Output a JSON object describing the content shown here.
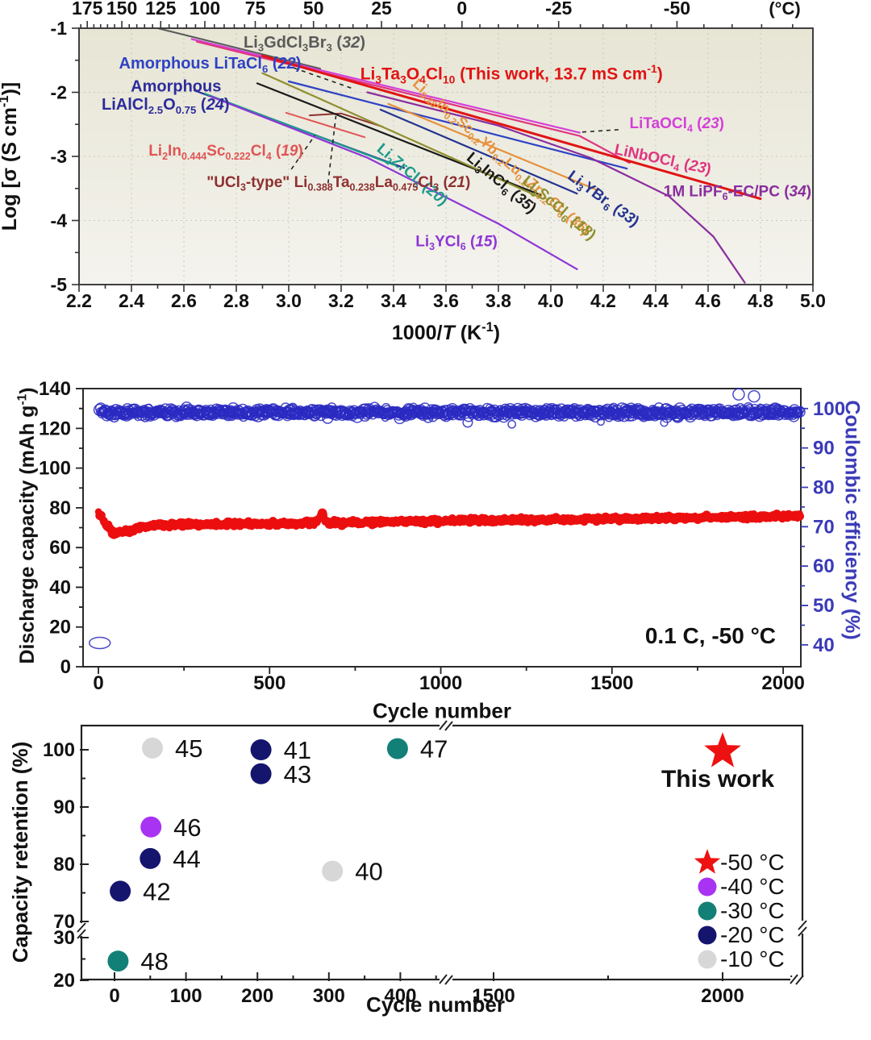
{
  "chart_data": [
    {
      "type": "line",
      "name": "arrhenius-conductivity",
      "plot_bg": [
        "#e7e5d4",
        "#f4f3ee"
      ],
      "x_axis": {
        "label": "1000/*T* (K^-1^)",
        "min": 2.2,
        "max": 5.0,
        "major_step": 0.2,
        "minor_step": 0.1
      },
      "y_axis": {
        "label": "Log [σ (S cm^-1^)]",
        "min": -5,
        "max": -1,
        "major_step": 1,
        "minor_step": 0.5
      },
      "top_axis": {
        "unit": "(°C)",
        "ticks": [
          175,
          150,
          125,
          100,
          75,
          50,
          25,
          0,
          -25,
          -50
        ],
        "minor_step_c": 5
      },
      "grid": {
        "x_values": [
          2.4,
          2.6,
          2.8,
          3.0,
          3.2,
          3.4,
          3.6,
          3.8,
          4.0,
          4.2,
          4.4,
          4.6,
          4.8
        ],
        "y_values": [
          -2,
          -3,
          -4
        ]
      },
      "series": [
        {
          "id": "li3gdcl3br3",
          "name": "Li~3~GdCl~3~Br~3~ (*32*)",
          "color": "#5a5a5a",
          "width": 2,
          "points": [
            [
              2.5,
              -1.0
            ],
            [
              3.12,
              -1.63
            ]
          ],
          "labels": [
            {
              "text": "Li~3~GdCl~3~Br~3~ (*32*)",
              "x": 3.06,
              "y": -1.3,
              "anchor": "middle",
              "size": 20
            }
          ]
        },
        {
          "id": "litaocl4",
          "name": "LiTaOCl~4~ (*23*)",
          "color": "#d43fd8",
          "width": 2.2,
          "points": [
            [
              2.63,
              -1.17
            ],
            [
              4.11,
              -2.63
            ]
          ],
          "labels": [
            {
              "text": "LiTaOCl~4~ (*23*)",
              "x": 4.3,
              "y": -2.56,
              "anchor": "start",
              "size": 19
            }
          ]
        },
        {
          "id": "linbocl4",
          "name": "LiNbOCl~4~ (*23*)",
          "color": "#e0347f",
          "width": 2.2,
          "points": [
            [
              2.65,
              -1.21
            ],
            [
              4.11,
              -2.68
            ],
            [
              4.3,
              -3.1
            ]
          ],
          "labels": [
            {
              "text": "LiNbOCl~4~ (*23*)",
              "x": 4.24,
              "y": -2.96,
              "anchor": "start",
              "size": 19,
              "rotate": 12
            }
          ]
        },
        {
          "id": "li3ta3o4cl10",
          "name": "Li~3~Ta~3~O~4~Cl~10~ (This work, 13.7 mS cm^-1^)",
          "color": "#e11414",
          "width": 3,
          "points": [
            [
              2.9,
              -1.43
            ],
            [
              4.8,
              -3.66
            ]
          ],
          "labels": [
            {
              "text": "Li~3~Ta~3~O~4~Cl~10~ (This work, 13.7 mS cm^-1^)",
              "x": 3.85,
              "y": -1.8,
              "anchor": "middle",
              "size": 21,
              "bold": true
            }
          ]
        },
        {
          "id": "amorphous-litacl6",
          "name": "Amorphous LiTaCl~6~ (*22*)",
          "color": "#2f42c4",
          "width": 2.2,
          "points": [
            [
              3.0,
              -1.83
            ],
            [
              4.29,
              -3.19
            ]
          ],
          "labels": [
            {
              "text": "Amorphous LiTaCl~6~ (*22*)",
              "x": 2.7,
              "y": -1.63,
              "anchor": "middle",
              "size": 20
            }
          ]
        },
        {
          "id": "amorphous-lialcl",
          "name": "Amorphous LiAlCl~2.5~O~0.75~ (*24*)",
          "color": "#2c2c9c",
          "width": 2.2,
          "points": [
            [
              2.64,
              -1.97
            ],
            [
              3.44,
              -3.18
            ]
          ],
          "labels": [
            {
              "text": "Amorphous",
              "x": 2.57,
              "y": -1.99,
              "anchor": "middle",
              "size": 20
            },
            {
              "text": "LiAlCl~2.5~O~0.75~ (*24*)",
              "x": 2.53,
              "y": -2.27,
              "anchor": "middle",
              "size": 20
            }
          ]
        },
        {
          "id": "li2zrcl6",
          "name": "Li~2~ZrCl~6~ (*20*)",
          "color": "#1f9a8c",
          "width": 2.2,
          "points": [
            [
              2.68,
              -2.02
            ],
            [
              3.4,
              -3.13
            ]
          ],
          "labels": [
            {
              "text": "Li~2~ZrCl~6~ (*20*)",
              "x": 3.46,
              "y": -3.34,
              "anchor": "middle",
              "size": 19,
              "rotate": 40
            }
          ]
        },
        {
          "id": "li3ycl6",
          "name": "Li~3~YCl~6~ (*15*)",
          "color": "#8e35d6",
          "width": 2.2,
          "points": [
            [
              2.7,
              -2.06
            ],
            [
              3.3,
              -3.02
            ],
            [
              3.8,
              -4.05
            ],
            [
              4.1,
              -4.76
            ]
          ],
          "labels": [
            {
              "text": "Li~3~YCl~6~ (*15*)",
              "x": 3.64,
              "y": -4.4,
              "anchor": "middle",
              "size": 19
            }
          ]
        },
        {
          "id": "li2in-sc-cl4",
          "name": "Li~2~In~0.444~Sc~0.222~Cl~4~ (*19*)",
          "color": "#e05555",
          "width": 2,
          "points": [
            [
              2.99,
              -2.32
            ],
            [
              3.29,
              -2.7
            ]
          ],
          "labels": [
            {
              "text": "Li~2~In~0.444~Sc~0.222~Cl~4~ (*19*)",
              "x": 2.76,
              "y": -2.99,
              "anchor": "middle",
              "size": 19
            }
          ]
        },
        {
          "id": "ucl3-type",
          "name": "\"UCl~3~-type\" Li~0.388~Ta~0.238~La~0.475~Cl~3~ (*21*)",
          "color": "#8f3030",
          "width": 2,
          "points": [
            [
              3.08,
              -2.36
            ],
            [
              3.2,
              -2.33
            ],
            [
              3.36,
              -2.54
            ]
          ],
          "labels": [
            {
              "text": "\"UCl~3~-type\" Li~0.388~Ta~0.238~La~0.475~Cl~3~ (*21*)",
              "x": 3.19,
              "y": -3.48,
              "anchor": "middle",
              "size": 19
            }
          ]
        },
        {
          "id": "hea-chloride",
          "name": "Li~0.28~In~0.2~Sc~0.2~Yb~0.2~Lu~0.2~Zr~0.2~Cl~6~ (*36*)",
          "color": "#e6913c",
          "width": 2.2,
          "points": [
            [
              3.38,
              -2.18
            ],
            [
              4.18,
              -3.53
            ]
          ],
          "labels": [
            {
              "text": "Li~0.28~In~0.2~Sc~0.2~Yb~0.2~Lu~0.2~Zr~0.2~Cl~6~ (*36*)",
              "x": 3.8,
              "y": -3.06,
              "anchor": "middle",
              "size": 18,
              "rotate": 41
            }
          ]
        },
        {
          "id": "li3incl6",
          "name": "Li~3~InCl~6~ (*35*)",
          "color": "#1a1a1a",
          "width": 2.2,
          "points": [
            [
              2.88,
              -1.86
            ],
            [
              3.96,
              -3.6
            ]
          ],
          "labels": [
            {
              "text": "Li~3~InCl~6~ (*35*)",
              "x": 3.8,
              "y": -3.47,
              "anchor": "middle",
              "size": 19,
              "rotate": 40
            }
          ]
        },
        {
          "id": "li3sccl6",
          "name": "Li~3~ScCl~6~ (*18*)",
          "color": "#8f8f2e",
          "width": 2.2,
          "points": [
            [
              2.9,
              -1.7
            ],
            [
              3.97,
              -3.66
            ]
          ],
          "labels": [
            {
              "text": "Li~3~ScCl~6~ (*18*)",
              "x": 4.02,
              "y": -3.86,
              "anchor": "middle",
              "size": 19,
              "rotate": 40
            }
          ]
        },
        {
          "id": "li3ybr6",
          "name": "Li~3~YBr~6~ (*33*)",
          "color": "#24338f",
          "width": 2.2,
          "points": [
            [
              3.35,
              -2.27
            ],
            [
              4.1,
              -3.58
            ]
          ],
          "labels": [
            {
              "text": "Li~3~YBr~6~ (*33*)",
              "x": 4.19,
              "y": -3.72,
              "anchor": "middle",
              "size": 19,
              "rotate": 36
            }
          ]
        },
        {
          "id": "lipf6-ecpc",
          "name": "1M LiPF~6~-EC/PC (*34*)",
          "color": "#8a2d9e",
          "width": 2.2,
          "points": [
            [
              3.3,
              -2.0
            ],
            [
              3.8,
              -2.52
            ],
            [
              4.15,
              -3.02
            ],
            [
              4.45,
              -3.62
            ],
            [
              4.62,
              -4.25
            ],
            [
              4.74,
              -4.97
            ]
          ],
          "labels": [
            {
              "text": "1M LiPF~6~-EC/PC (*34*)",
              "x": 4.43,
              "y": -3.62,
              "anchor": "start",
              "size": 19
            }
          ]
        }
      ],
      "pointers": [
        [
          3.02,
          -1.62,
          3.25,
          -1.95
        ],
        [
          3.01,
          -3.2,
          3.1,
          -2.67
        ],
        [
          3.15,
          -3.42,
          3.18,
          -2.37
        ],
        [
          4.12,
          -2.62,
          4.27,
          -2.58
        ]
      ]
    },
    {
      "type": "scatter",
      "name": "long-term-cycling",
      "x_axis": {
        "label": "Cycle number",
        "min": 0,
        "max": 2050,
        "major_ticks": [
          0,
          500,
          1000,
          1500,
          2000
        ],
        "minor_ticks": [
          250,
          750,
          1250,
          1750
        ]
      },
      "y_left": {
        "label": "Discharge capacity (mAh g^-1^)",
        "min": 0,
        "max": 140,
        "major_step": 20,
        "minor_step": 10,
        "color": "#111111"
      },
      "y_right": {
        "label": "Coulombic efficiency (%)",
        "major_ticks": [
          40,
          50,
          60,
          70,
          80,
          90,
          100
        ],
        "minor_step": 5,
        "color": "#3a3ab8"
      },
      "annotation": "0.1 C, -50 °C",
      "series": [
        {
          "name": "Discharge capacity",
          "axis": "left",
          "marker": "filled-circle",
          "color": "#ec0f0f",
          "cycles": 2050,
          "trend": {
            "start": 78.5,
            "dip_cycle": 45,
            "dip_value": 67,
            "recover_cycle": 150,
            "recover_value": 71.2,
            "end_value": 75.8,
            "noise": 1.2,
            "blip_cycle": 652,
            "blip_value": 82
          }
        },
        {
          "name": "Coulombic efficiency",
          "axis": "right",
          "marker": "open-circle",
          "color": "#2a2ac2",
          "cycles": 2050,
          "trend": {
            "mean": 99.0,
            "noise": 1.05,
            "first_cycle_value": 40.5,
            "high_outliers": [
              {
                "cycle": 1870,
                "value": 103.6
              },
              {
                "cycle": 1915,
                "value": 103.1
              }
            ]
          }
        }
      ]
    },
    {
      "type": "scatter",
      "name": "capacity-retention-comparison",
      "x_axis": {
        "label": "Cycle number",
        "segments": [
          {
            "ticks": [
              0,
              100,
              200,
              300,
              400
            ],
            "minor": [
              50,
              150,
              250,
              350,
              450
            ]
          },
          {
            "ticks": [
              1500,
              2000
            ],
            "minor": [
              1750,
              2150
            ]
          }
        ],
        "break_after": 400
      },
      "y_axis": {
        "label": "Capacity retention (%)",
        "segments": [
          {
            "ticks": [
              100,
              90,
              80,
              70
            ],
            "minor": [
              95,
              85,
              75
            ]
          },
          {
            "ticks": [
              30,
              20
            ],
            "minor": [
              25
            ]
          }
        ],
        "break_between": [
          70,
          30
        ]
      },
      "temperature_colors": {
        "-50 °C": "#ee1111",
        "-40 °C": "#a833f2",
        "-30 °C": "#128076",
        "-20 °C": "#15156e",
        "-10 °C": "#d7d7d7"
      },
      "points": [
        {
          "ref": "45",
          "temp": "-10 °C",
          "cycle": 53,
          "retention": 100.3
        },
        {
          "ref": "41",
          "temp": "-20 °C",
          "cycle": 205,
          "retention": 100.0
        },
        {
          "ref": "43",
          "temp": "-20 °C",
          "cycle": 205,
          "retention": 95.8
        },
        {
          "ref": "47",
          "temp": "-30 °C",
          "cycle": 396,
          "retention": 100.2
        },
        {
          "ref": "46",
          "temp": "-40 °C",
          "cycle": 51,
          "retention": 86.5
        },
        {
          "ref": "44",
          "temp": "-20 °C",
          "cycle": 50,
          "retention": 81.0
        },
        {
          "ref": "42",
          "temp": "-20 °C",
          "cycle": 8,
          "retention": 75.3
        },
        {
          "ref": "40",
          "temp": "-10 °C",
          "cycle": 305,
          "retention": 78.8
        },
        {
          "ref": "48",
          "temp": "-30 °C",
          "cycle": 5,
          "retention": 24.5
        }
      ],
      "highlight": {
        "label": "This work",
        "temp": "-50 °C",
        "cycle": 2000,
        "retention": 100.4,
        "marker": "star"
      },
      "legend": [
        {
          "marker": "star",
          "temp": "-50 °C"
        },
        {
          "marker": "circle",
          "temp": "-40 °C"
        },
        {
          "marker": "circle",
          "temp": "-30 °C"
        },
        {
          "marker": "circle",
          "temp": "-20 °C"
        },
        {
          "marker": "circle",
          "temp": "-10 °C"
        }
      ]
    }
  ]
}
